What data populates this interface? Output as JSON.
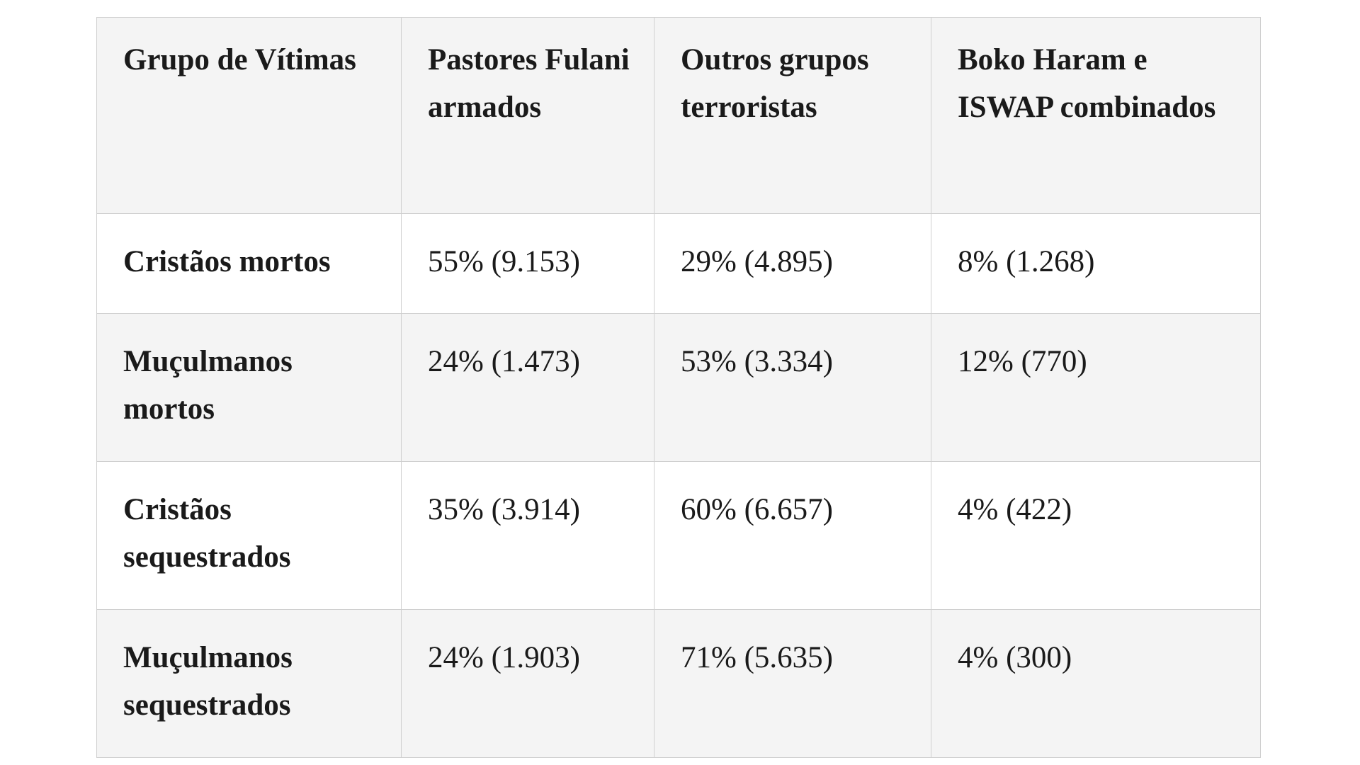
{
  "table": {
    "headers": [
      "Grupo de Vítimas",
      "Pastores Fulani armados",
      "Outros grupos terroristas",
      "Boko Haram e ISWAP combinados"
    ],
    "rows": [
      {
        "label": "Cristãos mortos",
        "values": [
          "55% (9.153)",
          "29% (4.895)",
          "8% (1.268)"
        ]
      },
      {
        "label": "Muçulmanos mortos",
        "values": [
          "24% (1.473)",
          "53% (3.334)",
          "12% (770)"
        ]
      },
      {
        "label": "Cristãos sequestrados",
        "values": [
          "35% (3.914)",
          "60% (6.657)",
          "4% (422)"
        ]
      },
      {
        "label": "Muçulmanos sequestrados",
        "values": [
          "24% (1.903)",
          "71% (5.635)",
          "4% (300)"
        ]
      }
    ]
  },
  "colors": {
    "header_background": "#f4f4f4",
    "row_alt_background": "#f4f4f4",
    "row_background": "#ffffff",
    "border": "#cfcfcf",
    "text": "#1a1a1a"
  }
}
